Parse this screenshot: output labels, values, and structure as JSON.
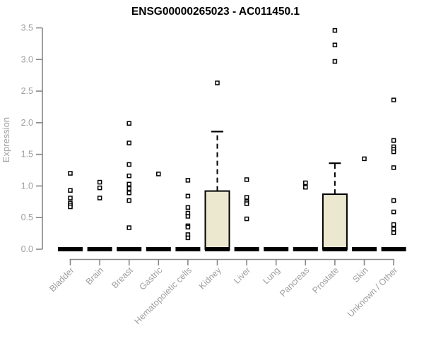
{
  "chart_data": {
    "type": "bar",
    "subtype": "boxplot-with-points",
    "title": "ENSG00000265023 - AC011450.1",
    "ylabel": "Expression",
    "xlabel": "",
    "ylim": [
      0,
      3.5
    ],
    "yticks": [
      "0.0",
      "0.5",
      "1.0",
      "1.5",
      "2.0",
      "2.5",
      "3.0",
      "3.5"
    ],
    "grid": false,
    "legend": false,
    "categories": [
      "Bladder",
      "Brain",
      "Breast",
      "Gastric",
      "Hematopoietic cells",
      "Kidney",
      "Liver",
      "Lung",
      "Pancreas",
      "Prostate",
      "Skin",
      "Unknown / Other"
    ],
    "groups": [
      {
        "name": "Bladder",
        "box": {
          "q1": 0,
          "median": 0,
          "q3": 0,
          "whisker_high": 0
        },
        "points": [
          1.2,
          0.93,
          0.81,
          0.73,
          0.7,
          0.67
        ]
      },
      {
        "name": "Brain",
        "box": {
          "q1": 0,
          "median": 0,
          "q3": 0,
          "whisker_high": 0
        },
        "points": [
          1.06,
          0.97,
          0.81
        ]
      },
      {
        "name": "Breast",
        "box": {
          "q1": 0,
          "median": 0,
          "q3": 0,
          "whisker_high": 0
        },
        "points": [
          1.99,
          1.68,
          1.34,
          1.16,
          1.03,
          0.96,
          0.89,
          0.77,
          0.34
        ]
      },
      {
        "name": "Gastric",
        "box": {
          "q1": 0,
          "median": 0,
          "q3": 0,
          "whisker_high": 0
        },
        "points": [
          1.19
        ]
      },
      {
        "name": "Hematopoietic cells",
        "box": {
          "q1": 0,
          "median": 0,
          "q3": 0,
          "whisker_high": 0
        },
        "points": [
          1.09,
          0.84,
          0.66,
          0.57,
          0.52,
          0.37,
          0.35,
          0.23,
          0.18
        ]
      },
      {
        "name": "Kidney",
        "box": {
          "q1": 0,
          "median": 0,
          "q3": 0.92,
          "whisker_high": 1.86
        },
        "points": [
          2.63
        ]
      },
      {
        "name": "Liver",
        "box": {
          "q1": 0,
          "median": 0,
          "q3": 0,
          "whisker_high": 0
        },
        "points": [
          1.1,
          0.82,
          0.75,
          0.72,
          0.48
        ]
      },
      {
        "name": "Lung",
        "box": {
          "q1": 0,
          "median": 0,
          "q3": 0,
          "whisker_high": 0
        },
        "points": []
      },
      {
        "name": "Pancreas",
        "box": {
          "q1": 0,
          "median": 0,
          "q3": 0,
          "whisker_high": 0
        },
        "points": [
          1.05,
          0.98
        ]
      },
      {
        "name": "Prostate",
        "box": {
          "q1": 0,
          "median": 0,
          "q3": 0.87,
          "whisker_high": 1.36
        },
        "points": [
          3.46,
          3.23,
          2.97
        ]
      },
      {
        "name": "Skin",
        "box": {
          "q1": 0,
          "median": 0,
          "q3": 0,
          "whisker_high": 0
        },
        "points": [
          1.43
        ]
      },
      {
        "name": "Unknown / Other",
        "box": {
          "q1": 0,
          "median": 0,
          "q3": 0,
          "whisker_high": 0
        },
        "points": [
          2.36,
          1.72,
          1.62,
          1.58,
          1.54,
          1.29,
          0.77,
          0.59,
          0.39,
          0.32,
          0.26
        ]
      }
    ],
    "colors": {
      "background": "#FFFFFF",
      "box_fill": "#ECE8D0",
      "box_stroke": "#000000",
      "median_bar": "#000000",
      "point_fill": "#FFFFFF",
      "point_stroke": "#000000",
      "axis_line": "#878787",
      "tick_label": "#9E9E9E",
      "title": "#000000"
    }
  }
}
